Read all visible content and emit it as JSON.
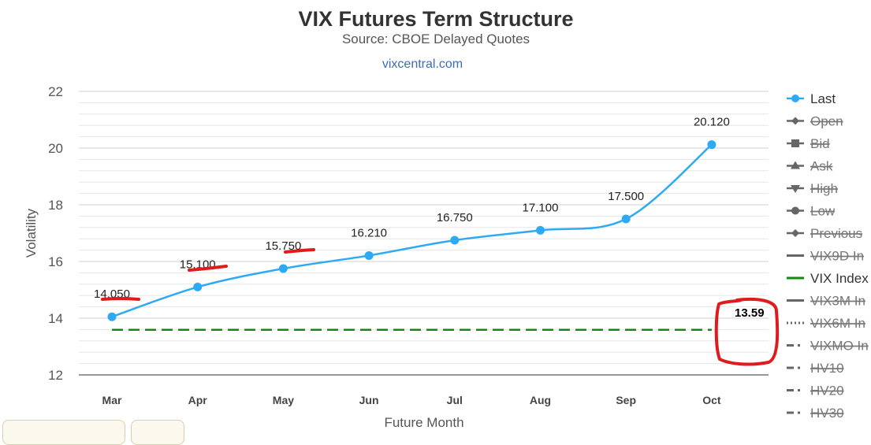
{
  "chart_data": {
    "type": "line",
    "title": "VIX Futures Term Structure",
    "subtitle": "Source: CBOE Delayed Quotes",
    "credit": "vixcentral.com",
    "xlabel": "Future Month",
    "ylabel": "Volatility",
    "ylim": [
      12,
      22
    ],
    "yticks": [
      12,
      14,
      16,
      18,
      20,
      22
    ],
    "grid": true,
    "categories": [
      "Mar",
      "Apr",
      "May",
      "Jun",
      "Jul",
      "Aug",
      "Sep",
      "Oct"
    ],
    "series": [
      {
        "name": "Last",
        "values": [
          14.05,
          15.1,
          15.75,
          16.21,
          16.75,
          17.1,
          17.5,
          20.12
        ],
        "labels": [
          "14.050",
          "15.100",
          "15.750",
          "16.210",
          "16.750",
          "17.100",
          "17.500",
          "20.120"
        ],
        "color": "#2eaaf5"
      },
      {
        "name": "VIX Index",
        "value": 13.59,
        "label": "13.59",
        "color": "#108a10"
      }
    ],
    "legend": {
      "placement": "right",
      "items": [
        {
          "name": "Last",
          "marker": "circle",
          "hidden": false
        },
        {
          "name": "Open",
          "marker": "diamond",
          "hidden": true
        },
        {
          "name": "Bid",
          "marker": "square",
          "hidden": true
        },
        {
          "name": "Ask",
          "marker": "triangle",
          "hidden": true
        },
        {
          "name": "High",
          "marker": "triangle-down",
          "hidden": true
        },
        {
          "name": "Low",
          "marker": "circle",
          "hidden": true
        },
        {
          "name": "Previous",
          "marker": "diamond",
          "hidden": true
        },
        {
          "name": "VIX9D In",
          "marker": "line",
          "hidden": true
        },
        {
          "name": "VIX Index",
          "marker": "line",
          "hidden": false,
          "color": "#108a10"
        },
        {
          "name": "VIX3M In",
          "marker": "line",
          "hidden": true
        },
        {
          "name": "VIX6M In",
          "marker": "dotted",
          "hidden": true
        },
        {
          "name": "VIXMO In",
          "marker": "dashdot",
          "hidden": true
        },
        {
          "name": "HV10",
          "marker": "dashdot",
          "hidden": true
        },
        {
          "name": "HV20",
          "marker": "dashdot",
          "hidden": true
        },
        {
          "name": "HV30",
          "marker": "dashdot",
          "hidden": true
        }
      ]
    },
    "annotation_color": "#e01b1b"
  }
}
